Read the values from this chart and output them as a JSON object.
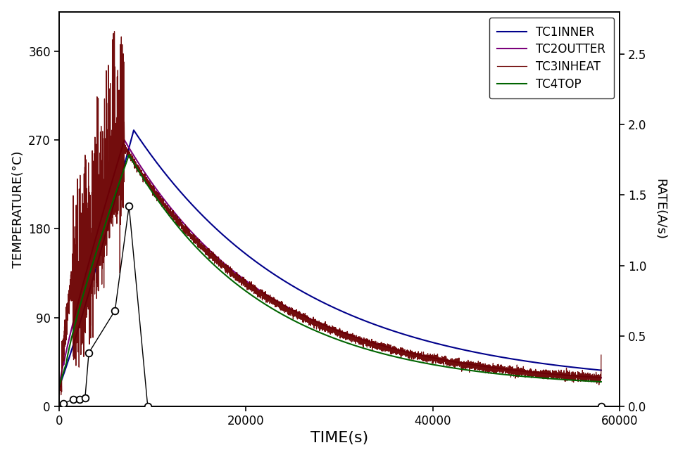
{
  "title": "",
  "xlabel": "TIME(s)",
  "ylabel_left": "TEMPERATURE(°C)",
  "ylabel_right": "RATE(A/s)",
  "xlim": [
    0,
    60000
  ],
  "ylim_left": [
    0,
    400
  ],
  "ylim_right": [
    0,
    2.8
  ],
  "yticks_left": [
    0,
    90,
    180,
    270,
    360
  ],
  "yticks_right": [
    0.0,
    0.5,
    1.0,
    1.5,
    2.0,
    2.5
  ],
  "xticks": [
    0,
    20000,
    40000,
    60000
  ],
  "legend_labels": [
    "TC1INNER",
    "TC2OUTTER",
    "TC3INHEAT",
    "TC4TOP"
  ],
  "tc1_color": "#00008B",
  "tc2_color": "#7B007B",
  "tc3_color": "#6B0000",
  "tc4_color": "#006400",
  "rate_color": "#000000",
  "background_color": "#ffffff",
  "rate_t": [
    500,
    1500,
    2200,
    2800,
    3200,
    6000,
    7500,
    9500,
    58000
  ],
  "rate_v": [
    0.02,
    0.05,
    0.05,
    0.06,
    0.38,
    0.68,
    1.42,
    0.0,
    0.0
  ]
}
